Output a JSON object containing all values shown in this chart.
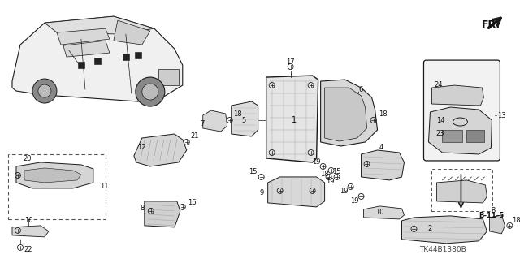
{
  "bg_color": "#ffffff",
  "fig_width": 6.4,
  "fig_height": 3.19,
  "dpi": 100,
  "watermark": "TK44B1380B",
  "line_color": "#1a1a1a",
  "gray_fill": "#e8e8e8",
  "dark_fill": "#555555"
}
